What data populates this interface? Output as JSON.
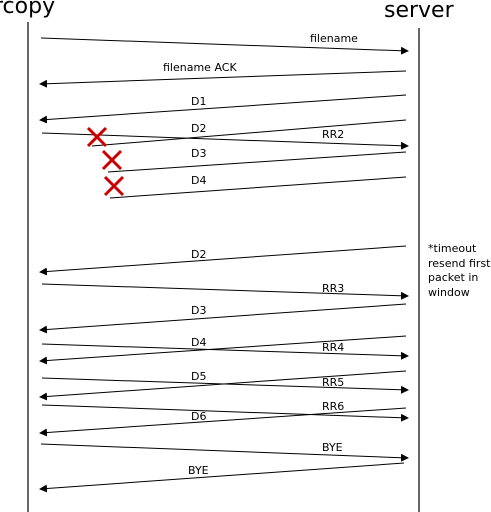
{
  "participants": {
    "left": "rcopy",
    "right": "server"
  },
  "note": {
    "lines": [
      "*timeout",
      "resend first",
      "packet in",
      "window"
    ]
  },
  "messages": [
    {
      "label": "filename",
      "from": "rcopy",
      "to": "server"
    },
    {
      "label": "filename ACK",
      "from": "server",
      "to": "rcopy"
    },
    {
      "label": "D1",
      "from": "server",
      "to": "rcopy"
    },
    {
      "label": "D2",
      "from": "server",
      "to": "rcopy",
      "lost": true
    },
    {
      "label": "RR2",
      "from": "rcopy",
      "to": "server"
    },
    {
      "label": "D3",
      "from": "server",
      "to": "rcopy",
      "lost": true
    },
    {
      "label": "D4",
      "from": "server",
      "to": "rcopy",
      "lost": true
    },
    {
      "label": "D2",
      "from": "server",
      "to": "rcopy"
    },
    {
      "label": "RR3",
      "from": "rcopy",
      "to": "server"
    },
    {
      "label": "D3",
      "from": "server",
      "to": "rcopy"
    },
    {
      "label": "D4",
      "from": "server",
      "to": "rcopy"
    },
    {
      "label": "RR4",
      "from": "rcopy",
      "to": "server"
    },
    {
      "label": "D5",
      "from": "server",
      "to": "rcopy"
    },
    {
      "label": "RR5",
      "from": "rcopy",
      "to": "server"
    },
    {
      "label": "RR6",
      "from": "rcopy",
      "to": "server"
    },
    {
      "label": "D6",
      "from": "server",
      "to": "rcopy"
    },
    {
      "label": "BYE",
      "from": "rcopy",
      "to": "server"
    },
    {
      "label": "BYE",
      "from": "server",
      "to": "rcopy"
    }
  ],
  "colors": {
    "loss_mark": "#cc0000",
    "line": "#000000"
  }
}
